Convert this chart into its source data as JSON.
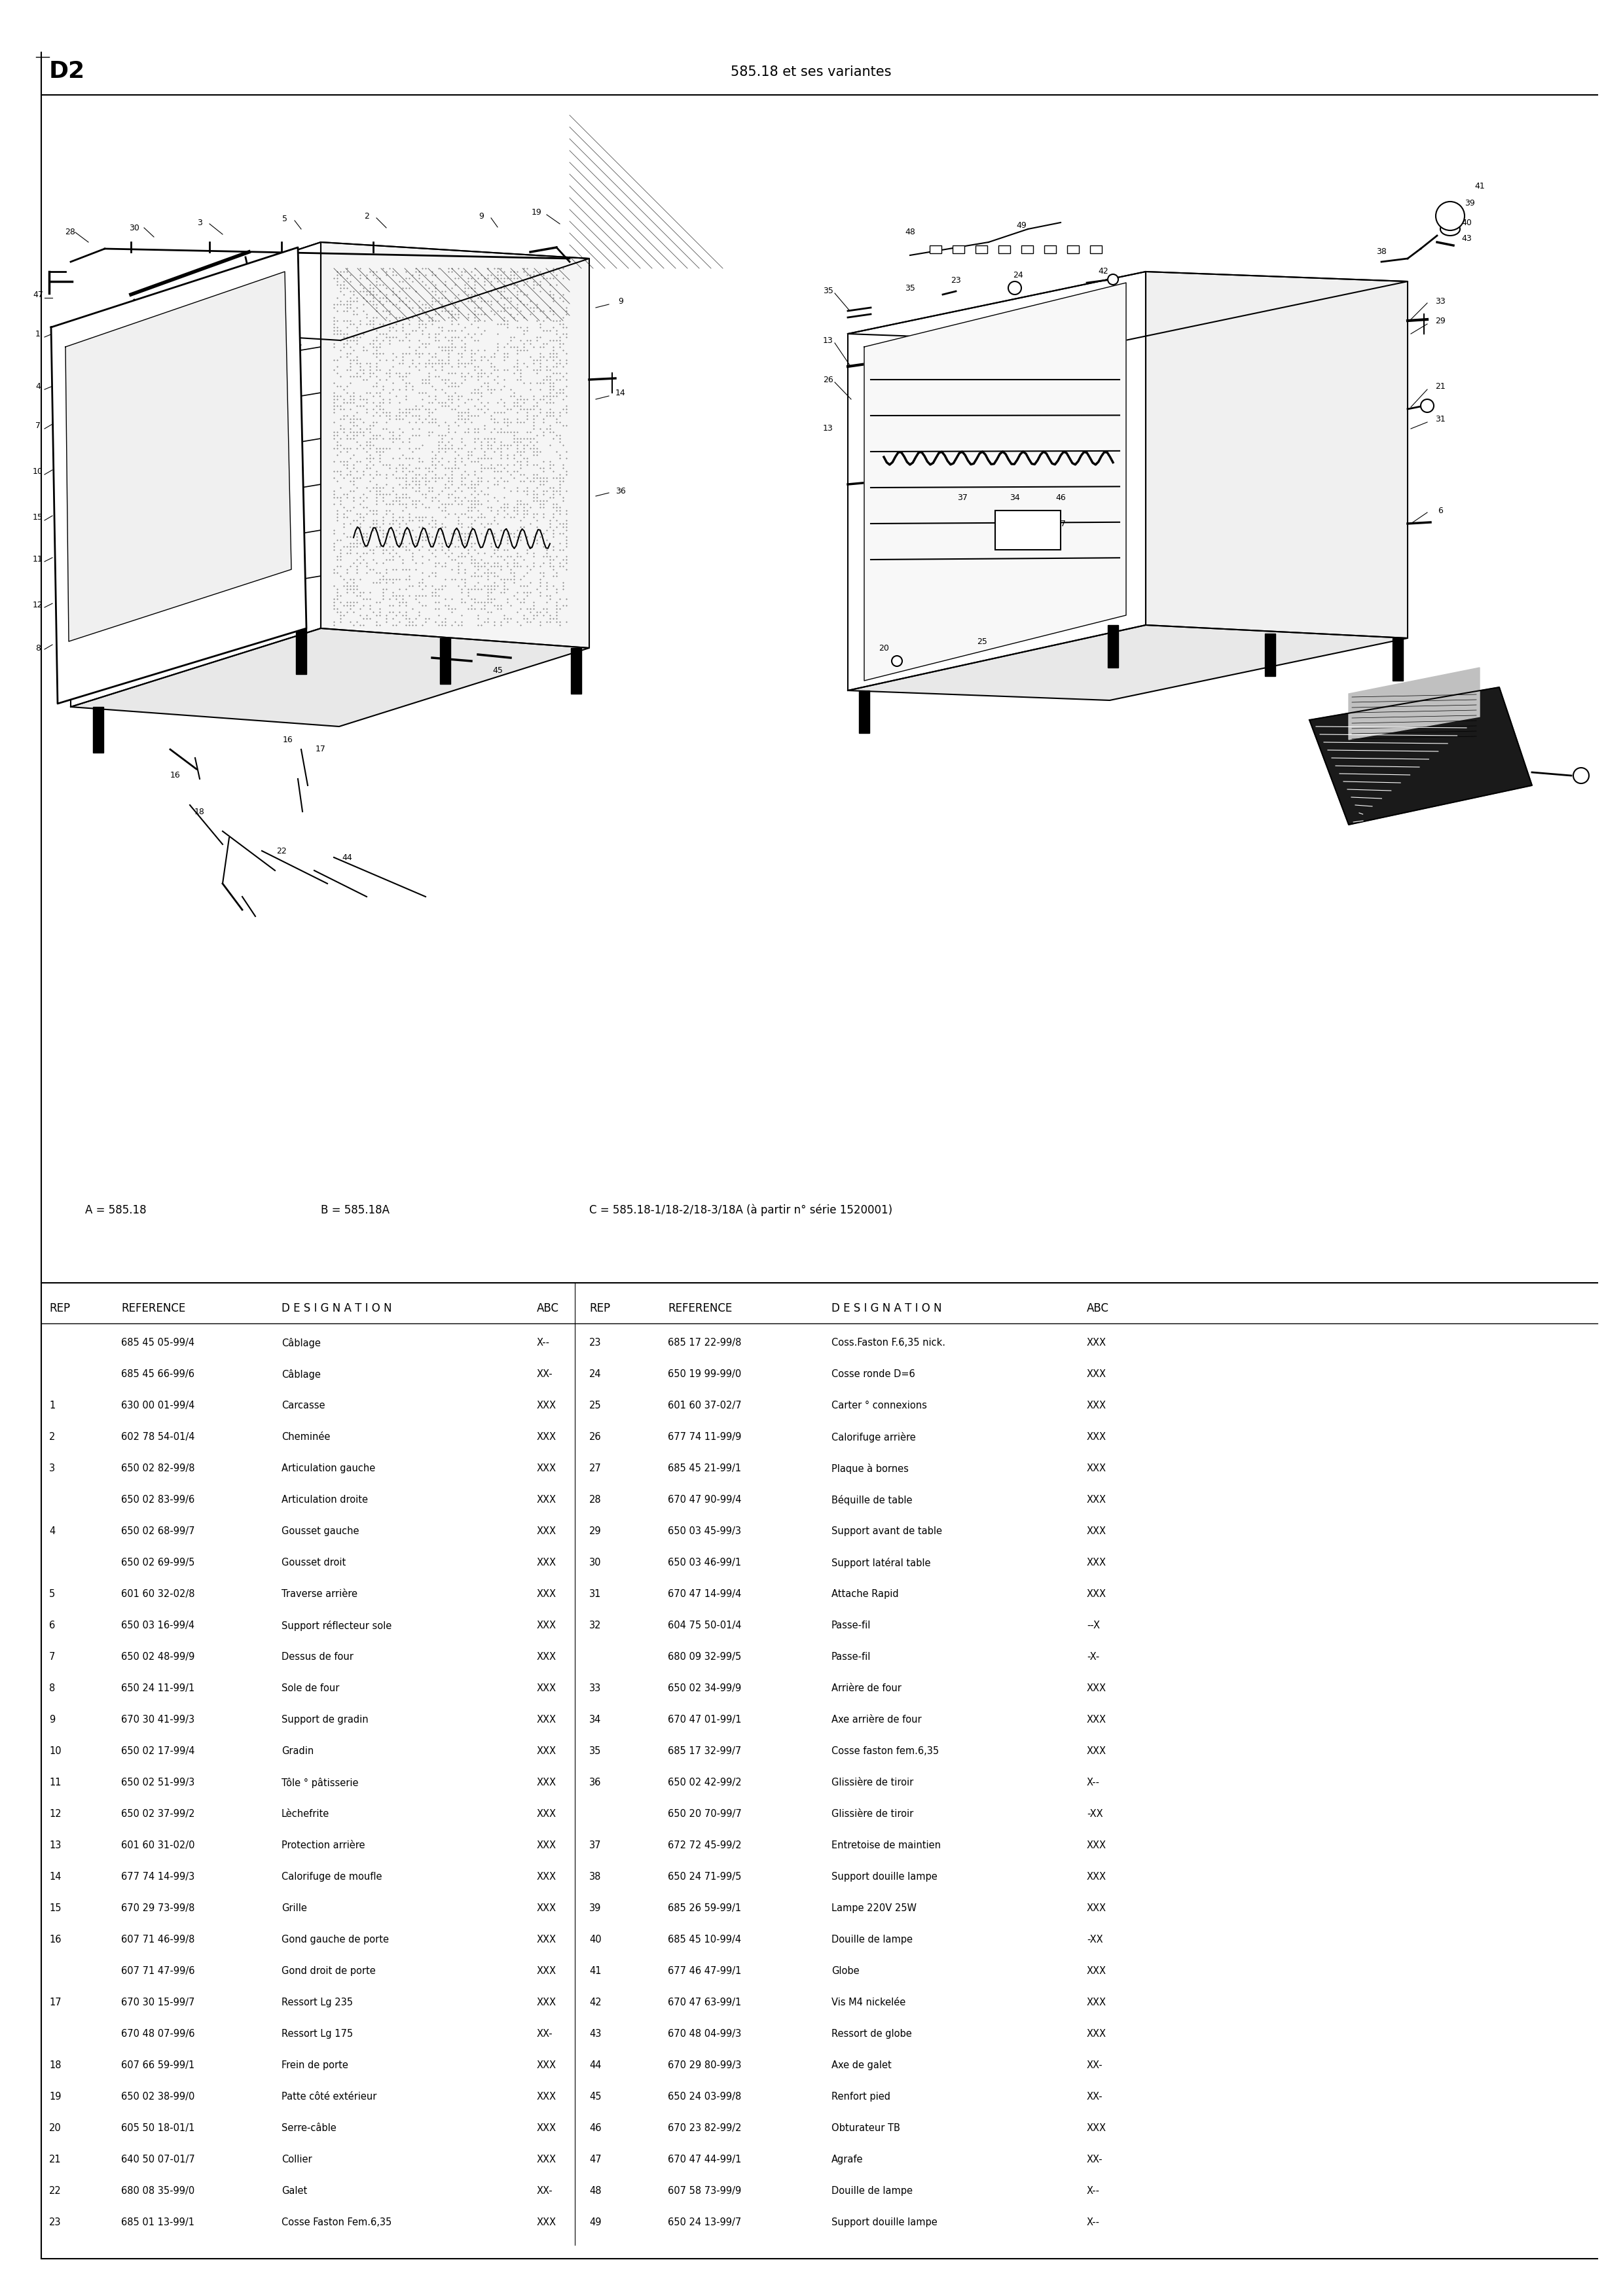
{
  "title_left": "D2",
  "title_center": "585.18 et ses variantes",
  "subtitle_a": "A = 585.18",
  "subtitle_b": "B = 585.18A",
  "subtitle_c": "C = 585.18-1/18-2/18-3/18A (à partir n° série 1520001)",
  "table_rows": [
    [
      "",
      "685 45 05-99/4",
      "Câblage",
      "X--",
      "23",
      "685 17 22-99/8",
      "Coss.Faston F.6,35 nick.XXX"
    ],
    [
      "",
      "685 45 66-99/6",
      "Câblage",
      "XX-",
      "24",
      "650 19 99-99/0",
      "Cosse ronde D=6         XXX"
    ],
    [
      "1",
      "630 00 01-99/4",
      "Carcasse",
      "XXX",
      "25",
      "601 60 37-02/7",
      "Carter ° connexions     XXX"
    ],
    [
      "2",
      "602 78 54-01/4",
      "Cheminée",
      "XXX",
      "26",
      "677 74 11-99/9",
      "Calorifuge arrière     XXX"
    ],
    [
      "3",
      "650 02 82-99/8",
      "Articulation gauche",
      "XXX",
      "27",
      "685 45 21-99/1",
      "Plaque à bornes        XXX"
    ],
    [
      "",
      "650 02 83-99/6",
      "Articulation droite",
      "XXX",
      "28",
      "670 47 90-99/4",
      "Béquille de table     XXX"
    ],
    [
      "4",
      "650 02 68-99/7",
      "Gousset gauche",
      "XXX",
      "29",
      "650 03 45-99/3",
      "Support avant de table  XXX"
    ],
    [
      "",
      "650 02 69-99/5",
      "Gousset droit",
      "XXX",
      "30",
      "650 03 46-99/1",
      "Support latéral table  XXX"
    ],
    [
      "5",
      "601 60 32-02/8",
      "Traverse arrière",
      "XXX",
      "31",
      "670 47 14-99/4",
      "Attache Rapid           XXX"
    ],
    [
      "6",
      "650 03 16-99/4",
      "Support réflecteur sole XXX",
      "32",
      "604 75 50-01/4",
      "Passe-fil               --X"
    ],
    [
      "7",
      "650 02 48-99/9",
      "Dessus de four",
      "XXX",
      "",
      "680 09 32-99/5",
      "Passe-fil               -X-"
    ],
    [
      "8",
      "650 24 11-99/1",
      "Sole de four",
      "XXX",
      "33",
      "650 02 34-99/9",
      "Arrière de four       XXX"
    ],
    [
      "9",
      "670 30 41-99/3",
      "Support de gradin",
      "XXX",
      "34",
      "670 47 01-99/1",
      "Axe arrière de four   XXX"
    ],
    [
      "10",
      "650 02 17-99/4",
      "Gradin",
      "XXX",
      "35",
      "685 17 32-99/7",
      "Cosse faston fem.6,35   XXX"
    ],
    [
      "11",
      "650 02 51-99/3",
      "Tôle ° pâtisserie",
      "XXX",
      "36",
      "650 02 42-99/2",
      "Glissière de tiroir   X--"
    ],
    [
      "12",
      "650 02 37-99/2",
      "Lèchefrite",
      "XXX",
      "",
      "650 20 70-99/7",
      "Glissière de tiroir   -XX"
    ],
    [
      "13",
      "601 60 31-02/0",
      "Protection arrière",
      "XXX",
      "37",
      "672 72 45-99/2",
      "Entretoise de maintien  XXX"
    ],
    [
      "14",
      "677 74 14-99/3",
      "Calorifuge de moufle",
      "XXX",
      "38",
      "650 24 71-99/5",
      "Support douille lampe   XXX"
    ],
    [
      "15",
      "670 29 73-99/8",
      "Grille",
      "XXX",
      "39",
      "685 26 59-99/1",
      "Lampe 220V 25W          XXX"
    ],
    [
      "16",
      "607 71 46-99/8",
      "Gond gauche de porte",
      "XXX",
      "40",
      "685 45 10-99/4",
      "Douille de lampe        -XX"
    ],
    [
      "",
      "607 71 47-99/6",
      "Gond droit de porte",
      "XXX",
      "41",
      "677 46 47-99/1",
      "Globe                   XXX"
    ],
    [
      "17",
      "670 30 15-99/7",
      "Ressort Lg 235",
      "XXX",
      "42",
      "670 47 63-99/1",
      "Vis M4 nickelée       XXX"
    ],
    [
      "",
      "670 48 07-99/6",
      "Ressort Lg 175",
      "XX-",
      "43",
      "670 48 04-99/3",
      "Ressort de globe        XXX"
    ],
    [
      "18",
      "607 66 59-99/1",
      "Frein de porte",
      "XXX",
      "44",
      "670 29 80-99/3",
      "Axe de galet            XX-"
    ],
    [
      "19",
      "650 02 38-99/0",
      "Patte côté extérieur",
      "XXX",
      "45",
      "650 24 03-99/8",
      "Renfort pied            XX-"
    ],
    [
      "20",
      "605 50 18-01/1",
      "Serre-câble",
      "XXX",
      "46",
      "670 23 82-99/2",
      "Obturateur TB           XXX"
    ],
    [
      "21",
      "640 50 07-01/7",
      "Collier",
      "XXX",
      "47",
      "670 47 44-99/1",
      "Agrafe                  XX-"
    ],
    [
      "22",
      "680 08 35-99/0",
      "Galet",
      "XX-",
      "48",
      "607 58 73-99/9",
      "Douille de lampe        X--"
    ],
    [
      "23",
      "685 01 13-99/1",
      "Cosse Faston Fem.6,35",
      "XXX",
      "49",
      "650 24 13-99/7",
      "Support douille lampe   X--"
    ]
  ],
  "table_rows_clean": [
    [
      "",
      "685 45 05-99/4",
      "Câblage",
      "X--",
      "23",
      "685 17 22-99/8",
      "Coss.Faston F.6,35 nick.",
      "XXX"
    ],
    [
      "",
      "685 45 66-99/6",
      "Câblage",
      "XX-",
      "24",
      "650 19 99-99/0",
      "Cosse ronde D=6",
      "XXX"
    ],
    [
      "1",
      "630 00 01-99/4",
      "Carcasse",
      "XXX",
      "25",
      "601 60 37-02/7",
      "Carter ° connexions",
      "XXX"
    ],
    [
      "2",
      "602 78 54-01/4",
      "Cheminée",
      "XXX",
      "26",
      "677 74 11-99/9",
      "Calorifuge arrière",
      "XXX"
    ],
    [
      "3",
      "650 02 82-99/8",
      "Articulation gauche",
      "XXX",
      "27",
      "685 45 21-99/1",
      "Plaque à bornes",
      "XXX"
    ],
    [
      "",
      "650 02 83-99/6",
      "Articulation droite",
      "XXX",
      "28",
      "670 47 90-99/4",
      "Béquille de table",
      "XXX"
    ],
    [
      "4",
      "650 02 68-99/7",
      "Gousset gauche",
      "XXX",
      "29",
      "650 03 45-99/3",
      "Support avant de table",
      "XXX"
    ],
    [
      "",
      "650 02 69-99/5",
      "Gousset droit",
      "XXX",
      "30",
      "650 03 46-99/1",
      "Support latéral table",
      "XXX"
    ],
    [
      "5",
      "601 60 32-02/8",
      "Traverse arrière",
      "XXX",
      "31",
      "670 47 14-99/4",
      "Attache Rapid",
      "XXX"
    ],
    [
      "6",
      "650 03 16-99/4",
      "Support réflecteur sole",
      "XXX",
      "32",
      "604 75 50-01/4",
      "Passe-fil",
      "--X"
    ],
    [
      "7",
      "650 02 48-99/9",
      "Dessus de four",
      "XXX",
      "",
      "680 09 32-99/5",
      "Passe-fil",
      "-X-"
    ],
    [
      "8",
      "650 24 11-99/1",
      "Sole de four",
      "XXX",
      "33",
      "650 02 34-99/9",
      "Arrière de four",
      "XXX"
    ],
    [
      "9",
      "670 30 41-99/3",
      "Support de gradin",
      "XXX",
      "34",
      "670 47 01-99/1",
      "Axe arrière de four",
      "XXX"
    ],
    [
      "10",
      "650 02 17-99/4",
      "Gradin",
      "XXX",
      "35",
      "685 17 32-99/7",
      "Cosse faston fem.6,35",
      "XXX"
    ],
    [
      "11",
      "650 02 51-99/3",
      "Tôle ° pâtisserie",
      "XXX",
      "36",
      "650 02 42-99/2",
      "Glissière de tiroir",
      "X--"
    ],
    [
      "12",
      "650 02 37-99/2",
      "Lèchefrite",
      "XXX",
      "",
      "650 20 70-99/7",
      "Glissière de tiroir",
      "-XX"
    ],
    [
      "13",
      "601 60 31-02/0",
      "Protection arrière",
      "XXX",
      "37",
      "672 72 45-99/2",
      "Entretoise de maintien",
      "XXX"
    ],
    [
      "14",
      "677 74 14-99/3",
      "Calorifuge de moufle",
      "XXX",
      "38",
      "650 24 71-99/5",
      "Support douille lampe",
      "XXX"
    ],
    [
      "15",
      "670 29 73-99/8",
      "Grille",
      "XXX",
      "39",
      "685 26 59-99/1",
      "Lampe 220V 25W",
      "XXX"
    ],
    [
      "16",
      "607 71 46-99/8",
      "Gond gauche de porte",
      "XXX",
      "40",
      "685 45 10-99/4",
      "Douille de lampe",
      "-XX"
    ],
    [
      "",
      "607 71 47-99/6",
      "Gond droit de porte",
      "XXX",
      "41",
      "677 46 47-99/1",
      "Globe",
      "XXX"
    ],
    [
      "17",
      "670 30 15-99/7",
      "Ressort Lg 235",
      "XXX",
      "42",
      "670 47 63-99/1",
      "Vis M4 nickelée",
      "XXX"
    ],
    [
      "",
      "670 48 07-99/6",
      "Ressort Lg 175",
      "XX-",
      "43",
      "670 48 04-99/3",
      "Ressort de globe",
      "XXX"
    ],
    [
      "18",
      "607 66 59-99/1",
      "Frein de porte",
      "XXX",
      "44",
      "670 29 80-99/3",
      "Axe de galet",
      "XX-"
    ],
    [
      "19",
      "650 02 38-99/0",
      "Patte côté extérieur",
      "XXX",
      "45",
      "650 24 03-99/8",
      "Renfort pied",
      "XX-"
    ],
    [
      "20",
      "605 50 18-01/1",
      "Serre-câble",
      "XXX",
      "46",
      "670 23 82-99/2",
      "Obturateur TB",
      "XXX"
    ],
    [
      "21",
      "640 50 07-01/7",
      "Collier",
      "XXX",
      "47",
      "670 47 44-99/1",
      "Agrafe",
      "XX-"
    ],
    [
      "22",
      "680 08 35-99/0",
      "Galet",
      "XX-",
      "48",
      "607 58 73-99/9",
      "Douille de lampe",
      "X--"
    ],
    [
      "23",
      "685 01 13-99/1",
      "Cosse Faston Fem.6,35",
      "XXX",
      "49",
      "650 24 13-99/7",
      "Support douille lampe",
      "X--"
    ]
  ],
  "bg_color": "#ffffff",
  "text_color": "#000000"
}
